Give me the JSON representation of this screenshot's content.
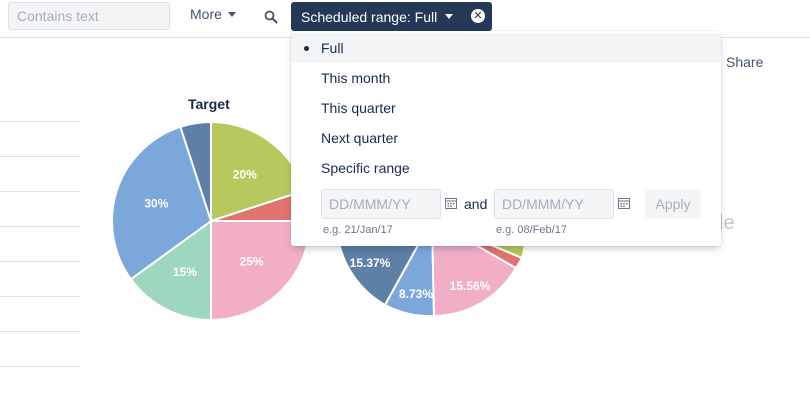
{
  "toolbar": {
    "search_placeholder": "Contains text",
    "more_label": "More",
    "filter_label": "Scheduled range: Full"
  },
  "share_label": "Share",
  "ghost_text": "le",
  "chart": {
    "title": "Target"
  },
  "chart_data": [
    {
      "type": "pie",
      "title": "Target",
      "slices": [
        {
          "value": 20,
          "label": "20%",
          "color": "#b5c95c"
        },
        {
          "value": 5,
          "label": "",
          "color": "#e0736d"
        },
        {
          "value": 25,
          "label": "25%",
          "color": "#f2aec6"
        },
        {
          "value": 15,
          "label": "15%",
          "color": "#9dd7bd"
        },
        {
          "value": 30,
          "label": "30%",
          "color": "#7ba7da"
        },
        {
          "value": 5,
          "label": "",
          "color": "#5f80a6"
        }
      ]
    },
    {
      "type": "pie",
      "title": "",
      "visible_labels": [
        "15.37%",
        "8.73%",
        "15.56%"
      ],
      "colors": [
        "#5f80a6",
        "#7ba7da",
        "#f2aec6",
        "#e0736d",
        "#b5c95c"
      ]
    }
  ],
  "dropdown": {
    "options": [
      {
        "label": "Full",
        "selected": true
      },
      {
        "label": "This month",
        "selected": false
      },
      {
        "label": "This quarter",
        "selected": false
      },
      {
        "label": "Next quarter",
        "selected": false
      },
      {
        "label": "Specific range",
        "selected": false
      }
    ],
    "from_placeholder": "DD/MMM/YY",
    "to_placeholder": "DD/MMM/YY",
    "and_label": "and",
    "from_hint": "e.g. 21/Jan/17",
    "to_hint": "e.g. 08/Feb/17",
    "apply_label": "Apply"
  },
  "colors": {
    "chip_bg": "#253858",
    "text_primary": "#172b4d"
  }
}
